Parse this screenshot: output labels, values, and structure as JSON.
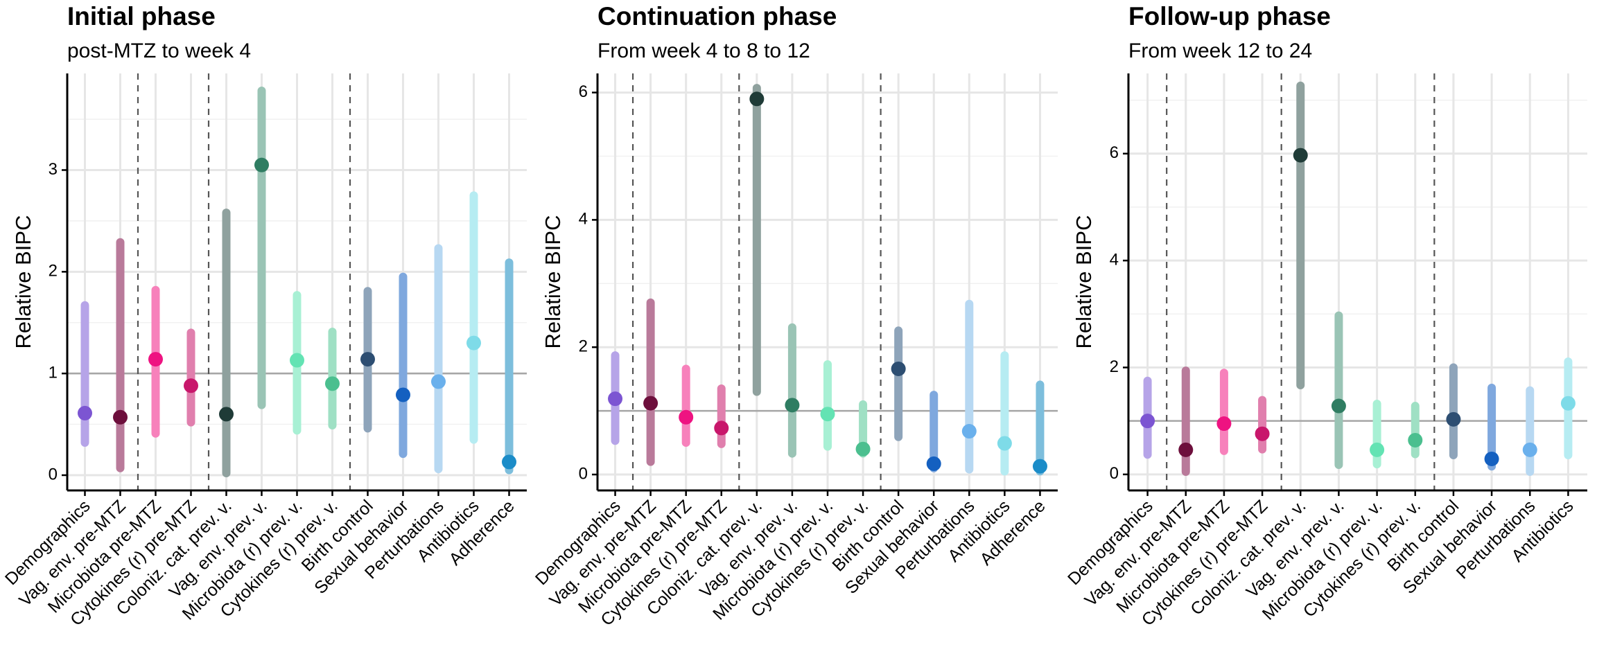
{
  "chart_data": [
    {
      "type": "pointrange",
      "title": "Initial phase",
      "subtitle": "post-MTZ to week 4",
      "ylabel": "Relative BIPC",
      "ylim": [
        -0.15,
        3.95
      ],
      "yticks": [
        0,
        1,
        2,
        3
      ],
      "reference_line": 1,
      "group_separators_after": [
        "Vag. env. pre-MTZ",
        "Cytokines (r) pre-MTZ",
        "Cytokines (r) prev. v."
      ],
      "categories": [
        "Demographics",
        "Vag. env. pre-MTZ",
        "Microbiota pre-MTZ",
        "Cytokines (r) pre-MTZ",
        "Coloniz. cat. prev. v.",
        "Vag. env. prev. v.",
        "Microbiota (r) prev. v.",
        "Cytokines (r) prev. v.",
        "Birth control",
        "Sexual behavior",
        "Perturbations",
        "Antibiotics",
        "Adherence"
      ],
      "values": [
        0.61,
        0.57,
        1.14,
        0.88,
        0.6,
        3.05,
        1.13,
        0.9,
        1.14,
        0.79,
        0.92,
        1.3,
        0.13
      ],
      "lower": [
        0.32,
        0.07,
        0.41,
        0.52,
        0.02,
        0.69,
        0.44,
        0.49,
        0.46,
        0.21,
        0.06,
        0.35,
        0.05
      ],
      "upper": [
        1.67,
        2.29,
        1.82,
        1.4,
        2.58,
        3.78,
        1.77,
        1.41,
        1.81,
        1.95,
        2.23,
        2.75,
        2.09
      ]
    },
    {
      "type": "pointrange",
      "title": "Continuation phase",
      "subtitle": "From week 4 to 8 to 12",
      "ylabel": "Relative BIPC",
      "ylim": [
        -0.25,
        6.3
      ],
      "yticks": [
        0,
        2,
        4,
        6
      ],
      "reference_line": 1,
      "group_separators_after": [
        "Demographics",
        "Cytokines (r) pre-MTZ",
        "Cytokines (r) prev. v."
      ],
      "categories": [
        "Demographics",
        "Vag. env. pre-MTZ",
        "Microbiota pre-MTZ",
        "Cytokines (r) pre-MTZ",
        "Coloniz. cat. prev. v.",
        "Vag. env. prev. v.",
        "Microbiota (r) prev. v.",
        "Cytokines (r) prev. v.",
        "Birth control",
        "Sexual behavior",
        "Perturbations",
        "Antibiotics",
        "Adherence"
      ],
      "values": [
        1.19,
        1.12,
        0.9,
        0.73,
        5.9,
        1.09,
        0.95,
        0.4,
        1.66,
        0.17,
        0.68,
        0.49,
        0.13
      ],
      "lower": [
        0.53,
        0.2,
        0.5,
        0.48,
        1.3,
        0.33,
        0.44,
        0.33,
        0.59,
        0.1,
        0.08,
        0.05,
        0.05
      ],
      "upper": [
        1.87,
        2.7,
        1.66,
        1.35,
        6.07,
        2.31,
        1.73,
        1.1,
        2.26,
        1.25,
        2.68,
        1.87,
        1.41
      ]
    },
    {
      "type": "pointrange",
      "title": "Follow-up phase",
      "subtitle": "From week 12 to 24",
      "ylabel": "Relative BIPC",
      "ylim": [
        -0.3,
        7.5
      ],
      "yticks": [
        0,
        2,
        4,
        6
      ],
      "reference_line": 1,
      "group_separators_after": [
        "Demographics",
        "Cytokines (r) pre-MTZ",
        "Cytokines (r) prev. v."
      ],
      "categories": [
        "Demographics",
        "Vag. env. pre-MTZ",
        "Microbiota pre-MTZ",
        "Cytokines (r) pre-MTZ",
        "Coloniz. cat. prev. v.",
        "Vag. env. prev. v.",
        "Microbiota (r) prev. v.",
        "Cytokines (r) prev. v.",
        "Birth control",
        "Sexual behavior",
        "Perturbations",
        "Antibiotics"
      ],
      "values": [
        1.0,
        0.46,
        0.95,
        0.76,
        5.97,
        1.28,
        0.46,
        0.64,
        1.03,
        0.29,
        0.46,
        1.33
      ],
      "lower": [
        0.37,
        0.05,
        0.44,
        0.47,
        1.67,
        0.18,
        0.19,
        0.38,
        0.36,
        0.15,
        0.05,
        0.36
      ],
      "upper": [
        1.75,
        1.94,
        1.9,
        1.39,
        7.27,
        2.97,
        1.32,
        1.28,
        2.0,
        1.62,
        1.57,
        2.11
      ]
    }
  ],
  "colors": {
    "groups": {
      "Demographics": {
        "range": "#b6a4e8",
        "point": "#7c55d2"
      },
      "Vag. env. pre-MTZ": {
        "range": "#b97a9a",
        "point": "#6d0f3c"
      },
      "Microbiota pre-MTZ": {
        "range": "#f781bb",
        "point": "#ee1381"
      },
      "Cytokines (r) pre-MTZ": {
        "range": "#e07fad",
        "point": "#c8176b"
      },
      "Coloniz. cat. prev. v.": {
        "range": "#8fa19e",
        "point": "#1f3b37"
      },
      "Vag. env. prev. v.": {
        "range": "#9ac4b5",
        "point": "#2f7d62"
      },
      "Microbiota (r) prev. v.": {
        "range": "#a8f0d4",
        "point": "#63e3b3"
      },
      "Cytokines (r) prev. v.": {
        "range": "#9fe0c4",
        "point": "#4bbf8f"
      },
      "Birth control": {
        "range": "#8ea4ba",
        "point": "#2d4e72"
      },
      "Sexual behavior": {
        "range": "#7fa8de",
        "point": "#1460c0"
      },
      "Perturbations": {
        "range": "#b7d8f2",
        "point": "#6ab0ec"
      },
      "Antibiotics": {
        "range": "#b6ecf2",
        "point": "#7edbe8"
      },
      "Adherence": {
        "range": "#7dbedc",
        "point": "#1b8cc8"
      }
    }
  }
}
